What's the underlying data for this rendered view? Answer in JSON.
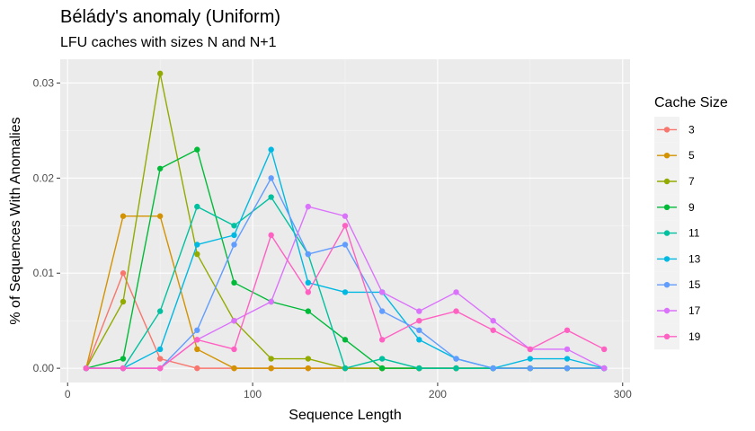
{
  "chart_data": {
    "type": "line",
    "title": "Bélády's anomaly (Uniform)",
    "subtitle": "LFU caches with sizes N and N+1",
    "xlabel": "Sequence Length",
    "ylabel": "% of Sequences With Anomalies",
    "xlim": [
      -4,
      304
    ],
    "ylim": [
      -0.0015,
      0.0325
    ],
    "xticks": [
      0,
      100,
      200,
      300
    ],
    "xtick_labels": [
      "0",
      "100",
      "200",
      "300"
    ],
    "yticks": [
      0.0,
      0.01,
      0.02,
      0.03
    ],
    "ytick_labels": [
      "0.00",
      "0.01",
      "0.02",
      "0.03"
    ],
    "grid": true,
    "legend_title": "Cache Size",
    "legend_position": "right",
    "x": [
      10,
      30,
      50,
      70,
      90,
      110,
      130,
      150,
      170,
      190,
      210,
      230,
      250,
      270,
      290
    ],
    "series": [
      {
        "name": "3",
        "color": "#F8766D",
        "values": [
          0,
          0.01,
          0.001,
          0,
          0,
          0,
          0,
          0,
          0,
          0,
          0,
          0,
          0,
          0,
          0
        ]
      },
      {
        "name": "5",
        "color": "#D39200",
        "values": [
          0,
          0.016,
          0.016,
          0.002,
          0,
          0,
          0,
          0,
          0,
          0,
          0,
          0,
          0,
          0,
          0
        ]
      },
      {
        "name": "7",
        "color": "#93AA00",
        "values": [
          0,
          0.007,
          0.031,
          0.012,
          0.005,
          0.001,
          0.001,
          0,
          0,
          0,
          0,
          0,
          0,
          0,
          0
        ]
      },
      {
        "name": "9",
        "color": "#00BA38",
        "values": [
          0,
          0.001,
          0.021,
          0.023,
          0.009,
          0.007,
          0.006,
          0.003,
          0,
          0,
          0,
          0,
          0,
          0,
          0
        ]
      },
      {
        "name": "11",
        "color": "#00C19F",
        "values": [
          0,
          0,
          0.006,
          0.017,
          0.015,
          0.018,
          0.012,
          0,
          0.001,
          0,
          0,
          0,
          0,
          0,
          0
        ]
      },
      {
        "name": "13",
        "color": "#00B9E3",
        "values": [
          0,
          0,
          0.002,
          0.013,
          0.014,
          0.023,
          0.009,
          0.008,
          0.008,
          0.003,
          0.001,
          0,
          0.001,
          0.001,
          0
        ]
      },
      {
        "name": "15",
        "color": "#619CFF",
        "values": [
          0,
          0,
          0,
          0.004,
          0.013,
          0.02,
          0.012,
          0.013,
          0.006,
          0.004,
          0.001,
          0,
          0,
          0,
          0
        ]
      },
      {
        "name": "17",
        "color": "#DB72FB",
        "values": [
          0,
          0,
          0,
          0.003,
          0.005,
          0.007,
          0.017,
          0.016,
          0.008,
          0.006,
          0.008,
          0.005,
          0.002,
          0.002,
          0
        ]
      },
      {
        "name": "19",
        "color": "#FF61C3",
        "values": [
          0,
          0,
          0,
          0.003,
          0.002,
          0.014,
          0.008,
          0.015,
          0.003,
          0.005,
          0.006,
          0.004,
          0.002,
          0.004,
          0.002
        ]
      }
    ]
  }
}
